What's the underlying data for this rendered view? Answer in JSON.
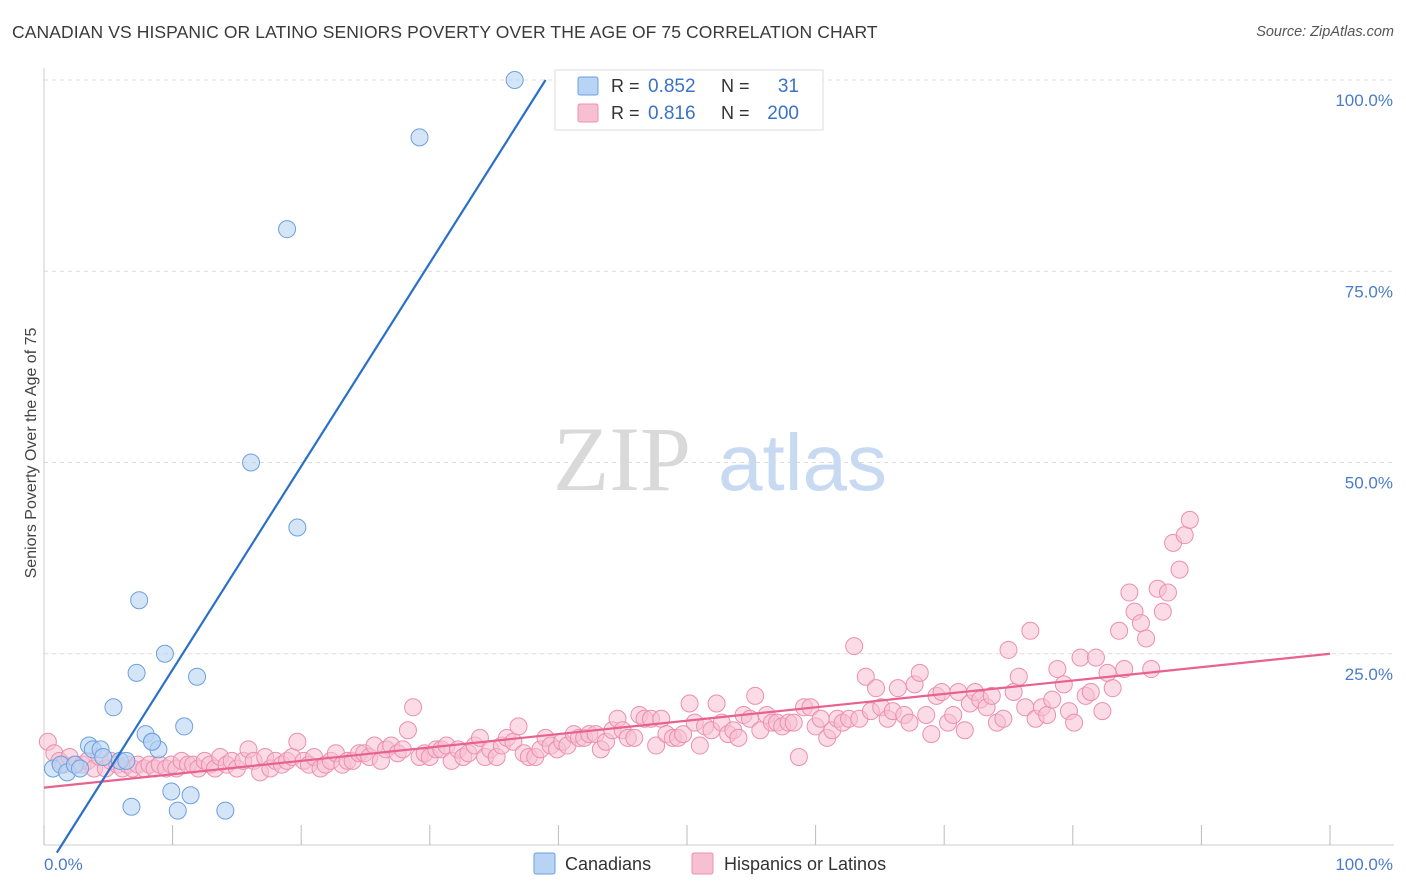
{
  "title": "CANADIAN VS HISPANIC OR LATINO SENIORS POVERTY OVER THE AGE OF 75 CORRELATION CHART",
  "source": "Source: ZipAtlas.com",
  "watermark": {
    "zip": "ZIP",
    "atlas": "atlas"
  },
  "colors": {
    "canadians_fill": "#b8d3f3",
    "canadians_stroke": "#6e9fe0",
    "canadians_line": "#2a6fc9",
    "hispanics_fill": "#f7c0d2",
    "hispanics_stroke": "#ec8faf",
    "hispanics_line": "#e8628f",
    "grid": "#dcdcdc",
    "tick_label": "#4a7cc9"
  },
  "legend": {
    "r_label": "R =",
    "n_label": "N =",
    "canadians": {
      "r": "0.852",
      "n": "31"
    },
    "hispanics": {
      "r": "0.816",
      "n": "200"
    }
  },
  "chart_data": {
    "type": "scatter",
    "title": "CANADIAN VS HISPANIC OR LATINO SENIORS POVERTY OVER THE AGE OF 75 CORRELATION CHART",
    "xlabel": "",
    "ylabel": "Seniors Poverty Over the Age of 75",
    "xlim": [
      0,
      100
    ],
    "ylim": [
      0,
      100
    ],
    "x_tick_labels": [
      "0.0%",
      "100.0%"
    ],
    "y_tick_labels": [
      "25.0%",
      "50.0%",
      "75.0%",
      "100.0%"
    ],
    "y_ticks": [
      25,
      50,
      75,
      100
    ],
    "grid": true,
    "legend_position": "top-center",
    "series": [
      {
        "name": "Canadians",
        "r": 0.852,
        "n": 31,
        "trend": {
          "x": [
            1,
            39
          ],
          "y": [
            -1,
            100
          ]
        },
        "points": [
          [
            0.7,
            10
          ],
          [
            1.3,
            10.5
          ],
          [
            1.8,
            9.5
          ],
          [
            2.4,
            10.5
          ],
          [
            2.8,
            10
          ],
          [
            3.5,
            13
          ],
          [
            3.8,
            12.5
          ],
          [
            4.4,
            12.5
          ],
          [
            4.6,
            11.5
          ],
          [
            5.4,
            18
          ],
          [
            5.9,
            11
          ],
          [
            6.4,
            11
          ],
          [
            6.8,
            5
          ],
          [
            7.9,
            14.5
          ],
          [
            8.4,
            13.5
          ],
          [
            8.9,
            12.5
          ],
          [
            7.4,
            32
          ],
          [
            9.4,
            25
          ],
          [
            8.4,
            13.5
          ],
          [
            9.9,
            7
          ],
          [
            10.4,
            4.5
          ],
          [
            11.4,
            6.5
          ],
          [
            11.9,
            22
          ],
          [
            10.9,
            15.5
          ],
          [
            14.1,
            4.5
          ],
          [
            16.1,
            50
          ],
          [
            18.9,
            80.5
          ],
          [
            19.7,
            41.5
          ],
          [
            29.2,
            92.5
          ],
          [
            36.6,
            100
          ],
          [
            7.2,
            22.5
          ]
        ]
      },
      {
        "name": "Hispanics or Latinos",
        "r": 0.816,
        "n": 200,
        "trend": {
          "x": [
            0,
            100
          ],
          "y": [
            7.5,
            25
          ]
        },
        "points": [
          [
            0.3,
            13.5
          ],
          [
            0.8,
            12
          ],
          [
            1.2,
            11
          ],
          [
            1.5,
            10.5
          ],
          [
            2,
            11.5
          ],
          [
            2.5,
            10.5
          ],
          [
            3,
            10.5
          ],
          [
            3.4,
            11
          ],
          [
            3.9,
            10
          ],
          [
            4.3,
            11.5
          ],
          [
            4.8,
            10
          ],
          [
            5.2,
            11
          ],
          [
            5.7,
            10.5
          ],
          [
            6.1,
            10
          ],
          [
            6.5,
            10.5
          ],
          [
            6.9,
            10
          ],
          [
            7.3,
            10.5
          ],
          [
            7.8,
            10
          ],
          [
            8.2,
            10.5
          ],
          [
            8.6,
            10
          ],
          [
            9,
            10.5
          ],
          [
            9.5,
            10
          ],
          [
            9.9,
            10.5
          ],
          [
            10.3,
            10
          ],
          [
            10.7,
            11
          ],
          [
            11.2,
            10.5
          ],
          [
            11.6,
            10.5
          ],
          [
            12,
            10
          ],
          [
            12.5,
            11
          ],
          [
            12.9,
            10.5
          ],
          [
            13.3,
            10
          ],
          [
            13.7,
            11.5
          ],
          [
            14.2,
            10.5
          ],
          [
            14.6,
            11
          ],
          [
            15,
            10
          ],
          [
            15.5,
            11
          ],
          [
            15.9,
            12.5
          ],
          [
            16.3,
            11
          ],
          [
            16.8,
            9.5
          ],
          [
            17.2,
            11.5
          ],
          [
            17.6,
            10
          ],
          [
            18,
            11
          ],
          [
            18.5,
            10.5
          ],
          [
            18.9,
            11
          ],
          [
            19.3,
            11.5
          ],
          [
            19.7,
            13.5
          ],
          [
            20.2,
            11
          ],
          [
            20.6,
            10.5
          ],
          [
            21,
            11.5
          ],
          [
            21.5,
            10
          ],
          [
            21.9,
            10.5
          ],
          [
            22.3,
            11
          ],
          [
            22.7,
            12
          ],
          [
            23.2,
            10.5
          ],
          [
            23.6,
            11
          ],
          [
            24,
            11
          ],
          [
            24.5,
            12
          ],
          [
            24.9,
            12
          ],
          [
            25.3,
            11.5
          ],
          [
            25.7,
            13
          ],
          [
            26.2,
            11
          ],
          [
            26.6,
            12.5
          ],
          [
            27,
            13
          ],
          [
            27.5,
            12
          ],
          [
            27.9,
            12.5
          ],
          [
            28.3,
            15
          ],
          [
            28.7,
            18
          ],
          [
            29.2,
            11.5
          ],
          [
            29.6,
            12
          ],
          [
            30,
            11.5
          ],
          [
            30.5,
            12.5
          ],
          [
            30.9,
            12.5
          ],
          [
            31.3,
            13
          ],
          [
            31.7,
            11
          ],
          [
            32.2,
            12.5
          ],
          [
            32.6,
            11.5
          ],
          [
            33,
            12
          ],
          [
            33.5,
            13
          ],
          [
            33.9,
            14
          ],
          [
            34.3,
            11.5
          ],
          [
            34.7,
            12.5
          ],
          [
            35.2,
            11.5
          ],
          [
            35.6,
            13
          ],
          [
            36,
            14
          ],
          [
            36.5,
            13.5
          ],
          [
            36.9,
            15.5
          ],
          [
            37.3,
            12
          ],
          [
            37.7,
            11.5
          ],
          [
            38.2,
            11.5
          ],
          [
            38.6,
            12.5
          ],
          [
            39,
            14
          ],
          [
            39.4,
            13
          ],
          [
            39.9,
            12.5
          ],
          [
            40.3,
            13.5
          ],
          [
            40.7,
            13
          ],
          [
            41.2,
            14.5
          ],
          [
            41.6,
            14
          ],
          [
            42,
            14
          ],
          [
            42.4,
            14.5
          ],
          [
            42.9,
            14.5
          ],
          [
            43.3,
            12.5
          ],
          [
            43.7,
            13.5
          ],
          [
            44.2,
            15
          ],
          [
            44.6,
            16.5
          ],
          [
            45,
            15
          ],
          [
            45.4,
            14
          ],
          [
            45.9,
            14
          ],
          [
            46.3,
            17
          ],
          [
            46.7,
            16.5
          ],
          [
            47.2,
            16.5
          ],
          [
            47.6,
            13
          ],
          [
            48,
            16.5
          ],
          [
            48.4,
            14.5
          ],
          [
            48.9,
            14
          ],
          [
            49.3,
            14
          ],
          [
            49.7,
            14.5
          ],
          [
            50.2,
            18.5
          ],
          [
            50.6,
            16
          ],
          [
            51,
            13
          ],
          [
            51.4,
            15.5
          ],
          [
            51.9,
            15
          ],
          [
            52.3,
            18.5
          ],
          [
            52.7,
            16
          ],
          [
            53.2,
            14.5
          ],
          [
            53.6,
            15
          ],
          [
            54,
            14
          ],
          [
            54.4,
            17
          ],
          [
            54.9,
            16.5
          ],
          [
            55.3,
            19.5
          ],
          [
            55.7,
            15
          ],
          [
            56.2,
            17
          ],
          [
            56.6,
            16
          ],
          [
            57,
            16
          ],
          [
            57.4,
            15.5
          ],
          [
            57.9,
            16
          ],
          [
            58.3,
            16
          ],
          [
            58.7,
            11.5
          ],
          [
            59.1,
            18
          ],
          [
            59.6,
            18
          ],
          [
            60,
            15.5
          ],
          [
            60.4,
            16.5
          ],
          [
            60.9,
            14
          ],
          [
            61.3,
            15
          ],
          [
            61.7,
            16.5
          ],
          [
            62.1,
            16
          ],
          [
            62.6,
            16.5
          ],
          [
            63,
            26
          ],
          [
            63.4,
            16.5
          ],
          [
            63.9,
            22
          ],
          [
            64.3,
            17.5
          ],
          [
            64.7,
            20.5
          ],
          [
            65.1,
            18
          ],
          [
            65.6,
            16.5
          ],
          [
            66,
            17.5
          ],
          [
            66.4,
            20.5
          ],
          [
            66.9,
            17
          ],
          [
            67.3,
            16
          ],
          [
            67.7,
            21
          ],
          [
            68.1,
            22.5
          ],
          [
            68.6,
            17
          ],
          [
            69,
            14.5
          ],
          [
            69.4,
            19.5
          ],
          [
            69.8,
            20
          ],
          [
            70.3,
            16
          ],
          [
            70.7,
            17
          ],
          [
            71.1,
            20
          ],
          [
            71.6,
            15
          ],
          [
            72,
            18.5
          ],
          [
            72.4,
            20
          ],
          [
            72.8,
            19
          ],
          [
            73.3,
            18
          ],
          [
            73.7,
            19.5
          ],
          [
            74.1,
            16
          ],
          [
            74.6,
            16.5
          ],
          [
            75,
            25.5
          ],
          [
            75.4,
            20
          ],
          [
            75.8,
            22
          ],
          [
            76.3,
            18
          ],
          [
            76.7,
            28
          ],
          [
            77.1,
            16.5
          ],
          [
            77.6,
            18
          ],
          [
            78,
            17
          ],
          [
            78.4,
            19
          ],
          [
            78.8,
            23
          ],
          [
            79.3,
            21
          ],
          [
            79.7,
            17.5
          ],
          [
            80.1,
            16
          ],
          [
            80.6,
            24.5
          ],
          [
            81,
            19.5
          ],
          [
            81.4,
            20
          ],
          [
            81.8,
            24.5
          ],
          [
            82.3,
            17.5
          ],
          [
            82.7,
            22.5
          ],
          [
            83.1,
            20.5
          ],
          [
            83.6,
            28
          ],
          [
            84,
            23
          ],
          [
            84.4,
            33
          ],
          [
            84.8,
            30.5
          ],
          [
            85.3,
            29
          ],
          [
            85.7,
            27
          ],
          [
            86.1,
            23
          ],
          [
            86.6,
            33.5
          ],
          [
            87,
            30.5
          ],
          [
            87.4,
            33
          ],
          [
            87.8,
            39.5
          ],
          [
            88.3,
            36
          ],
          [
            88.7,
            40.5
          ],
          [
            89.1,
            42.5
          ]
        ]
      }
    ]
  },
  "bottom_legend": {
    "canadians": "Canadians",
    "hispanics": "Hispanics or Latinos"
  }
}
